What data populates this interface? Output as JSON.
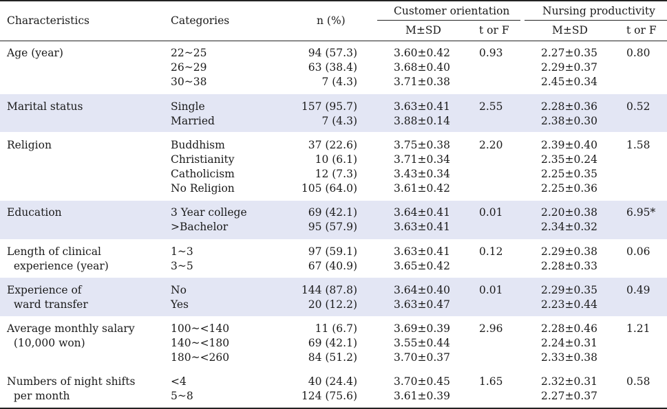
{
  "headers": {
    "characteristics": "Characteristics",
    "categories": "Categories",
    "n_pct": "n (%)",
    "customer_orientation": "Customer orientation",
    "nursing_productivity": "Nursing productivity",
    "m_sd_1": "M±SD",
    "t_or_f_1": "t or F",
    "m_sd_2": "M±SD",
    "t_or_f_2": "t or F"
  },
  "rows": [
    {
      "characteristic": "Age (year)",
      "categories": "22~25\n26~29\n30~38",
      "n": "94 (57.3)\n63 (38.4)\n7 (4.3)",
      "co_msd": "3.60±0.42\n3.68±0.40\n3.71±0.38",
      "co_t": "0.93",
      "np_msd": "2.27±0.35\n2.29±0.37\n2.45±0.34",
      "np_t": "0.80"
    },
    {
      "characteristic": "Marital status",
      "categories": "Single\nMarried",
      "n": "157 (95.7)\n7 (4.3)",
      "co_msd": "3.63±0.41\n3.88±0.14",
      "co_t": "2.55",
      "np_msd": "2.28±0.36\n2.38±0.30",
      "np_t": "0.52"
    },
    {
      "characteristic": "Religion",
      "categories": "Buddhism\nChristianity\nCatholicism\nNo Religion",
      "n": "37 (22.6)\n10 (6.1)\n12 (7.3)\n105 (64.0)",
      "co_msd": "3.75±0.38\n3.71±0.34\n3.43±0.34\n3.61±0.42",
      "co_t": "2.20",
      "np_msd": "2.39±0.40\n2.35±0.24\n2.25±0.35\n2.25±0.36",
      "np_t": "1.58"
    },
    {
      "characteristic": "Education",
      "categories": "3 Year college\n>Bachelor",
      "n": "69 (42.1)\n95 (57.9)",
      "co_msd": "3.64±0.41\n3.63±0.41",
      "co_t": "0.01",
      "np_msd": "2.20±0.38\n2.34±0.32",
      "np_t": "6.95*"
    },
    {
      "characteristic": "Length of clinical\n  experience (year)",
      "categories": "1~3\n3~5",
      "n": "97 (59.1)\n67 (40.9)",
      "co_msd": "3.63±0.41\n3.65±0.42",
      "co_t": "0.12",
      "np_msd": "2.29±0.38\n2.28±0.33",
      "np_t": "0.06"
    },
    {
      "characteristic": "Experience of\n  ward transfer",
      "categories": "No\nYes",
      "n": "144 (87.8)\n20 (12.2)",
      "co_msd": "3.64±0.40\n3.63±0.47",
      "co_t": "0.01",
      "np_msd": "2.29±0.35\n2.23±0.44",
      "np_t": "0.49"
    },
    {
      "characteristic": "Average monthly salary\n  (10,000 won)",
      "categories": "100~<140\n140~<180\n180~<260",
      "n": "11 (6.7)\n69 (42.1)\n84 (51.2)",
      "co_msd": "3.69±0.39\n3.55±0.44\n3.70±0.37",
      "co_t": "2.96",
      "np_msd": "2.28±0.46\n2.24±0.31\n2.33±0.38",
      "np_t": "1.21"
    },
    {
      "characteristic": "Numbers of night shifts\n  per month",
      "categories": "<4\n5~8",
      "n": "40 (24.4)\n124 (75.6)",
      "co_msd": "3.70±0.45\n3.61±0.39",
      "co_t": "1.65",
      "np_msd": "2.32±0.31\n2.27±0.37",
      "np_t": "0.58"
    }
  ]
}
